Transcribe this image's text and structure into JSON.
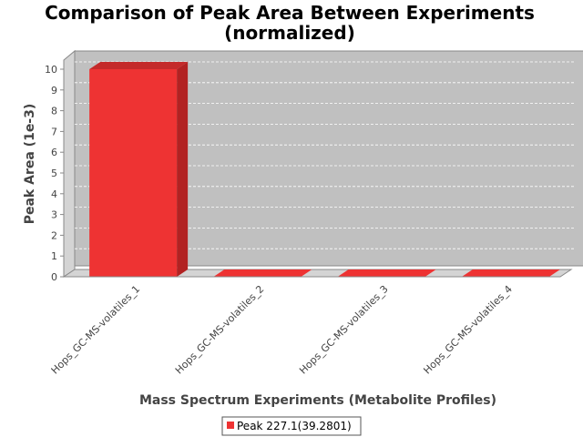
{
  "chart_data": {
    "type": "bar",
    "title": "Comparison of Peak Area Between Experiments",
    "subtitle": "(normalized)",
    "xlabel": "Mass Spectrum Experiments (Metabolite Profiles)",
    "ylabel": "Peak Area (1e-3)",
    "categories": [
      "Hops_GC-MS-volatiles_1",
      "Hops_GC-MS-volatiles_2",
      "Hops_GC-MS-volatiles_3",
      "Hops_GC-MS-volatiles_4"
    ],
    "series": [
      {
        "name": "Peak 227.1(39.2801)",
        "values": [
          10,
          0,
          0,
          0
        ]
      }
    ],
    "ylim": [
      0,
      10
    ],
    "yticks": [
      0,
      1,
      2,
      3,
      4,
      5,
      6,
      7,
      8,
      9,
      10
    ],
    "grid": true,
    "legend_position": "bottom",
    "colors": {
      "bar": "#ee3333",
      "bar_side": "#b22222",
      "bar_top": "#c42a2a",
      "plot_bg": "#c0c0c0",
      "wall": "#d4d4d4",
      "outline": "#888888"
    }
  }
}
